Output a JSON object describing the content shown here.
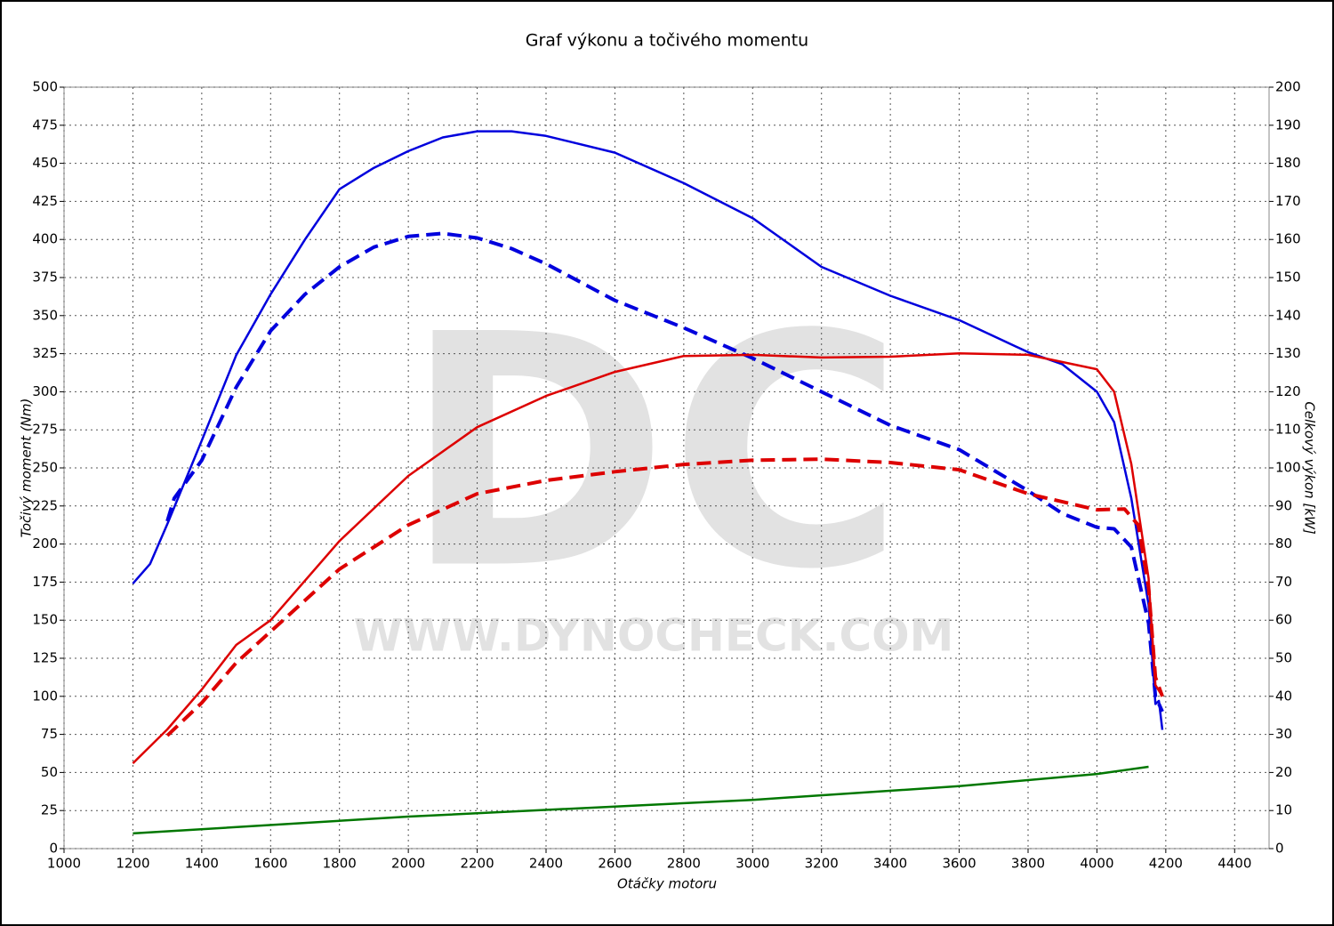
{
  "chart_data": {
    "type": "line",
    "title": "Graf výkonu a točivého momentu",
    "xlabel": "Otáčky motoru",
    "ylabel": "Točivý moment (Nm)",
    "y2label": "Celkový výkon [kW]",
    "watermark": "DC",
    "watermark_url": "WWW.DYNOCHECK.COM",
    "xlim": [
      1000,
      4500
    ],
    "xticks": [
      1000,
      1200,
      1400,
      1600,
      1800,
      2000,
      2200,
      2400,
      2600,
      2800,
      3000,
      3200,
      3400,
      3600,
      3800,
      4000,
      4200,
      4400
    ],
    "ylim": [
      0,
      500
    ],
    "yticks": [
      0,
      25,
      50,
      75,
      100,
      125,
      150,
      175,
      200,
      225,
      250,
      275,
      300,
      325,
      350,
      375,
      400,
      425,
      450,
      475,
      500
    ],
    "y2lim": [
      0,
      200
    ],
    "y2ticks": [
      0,
      10,
      20,
      30,
      40,
      50,
      60,
      70,
      80,
      90,
      100,
      110,
      120,
      130,
      140,
      150,
      160,
      170,
      180,
      190,
      200
    ],
    "grid": true,
    "series": [
      {
        "color": "#0000dd",
        "style": "solid",
        "x": [
          1200,
          1250,
          1300,
          1400,
          1500,
          1600,
          1700,
          1800,
          1900,
          2000,
          2100,
          2200,
          2300,
          2400,
          2600,
          2800,
          3000,
          3200,
          3400,
          3600,
          3800,
          3900,
          4000,
          4050,
          4100,
          4150,
          4170,
          4180,
          4190
        ],
        "values": [
          174,
          187,
          213,
          268,
          324,
          364,
          400,
          433,
          447,
          458,
          467,
          471,
          471,
          468,
          457,
          437,
          414,
          382,
          363,
          347,
          326,
          318,
          300,
          280,
          230,
          160,
          95,
          97,
          78
        ]
      },
      {
        "color": "#0000dd",
        "style": "dashed",
        "x": [
          1300,
          1320,
          1400,
          1500,
          1600,
          1700,
          1800,
          1900,
          2000,
          2100,
          2200,
          2300,
          2400,
          2600,
          2800,
          3000,
          3200,
          3400,
          3600,
          3800,
          3900,
          4000,
          4050,
          4100,
          4150,
          4170,
          4190
        ],
        "values": [
          215,
          230,
          255,
          303,
          340,
          364,
          382,
          395,
          402,
          404,
          401,
          394,
          384,
          360,
          342,
          322,
          300,
          278,
          262,
          235,
          220,
          211,
          210,
          198,
          148,
          100,
          90
        ]
      },
      {
        "color": "#dd0000",
        "style": "solid",
        "axis": "y2",
        "x": [
          1200,
          1300,
          1400,
          1500,
          1600,
          1800,
          2000,
          2200,
          2400,
          2600,
          2800,
          3000,
          3200,
          3400,
          3600,
          3800,
          4000,
          4050,
          4100,
          4150,
          4170,
          4190
        ],
        "values": [
          22.4,
          31.3,
          41.8,
          53.5,
          60,
          80.8,
          97.9,
          110.7,
          118.9,
          125.2,
          129.4,
          129.7,
          129,
          129.2,
          130.1,
          129.7,
          125.9,
          120,
          101,
          71,
          43,
          40
        ]
      },
      {
        "color": "#dd0000",
        "style": "dashed",
        "axis": "y2",
        "x": [
          1300,
          1400,
          1500,
          1600,
          1800,
          2000,
          2200,
          2400,
          2600,
          2800,
          3000,
          3200,
          3400,
          3600,
          3800,
          4000,
          4080,
          4120,
          4150,
          4170,
          4190
        ],
        "values": [
          29.7,
          38.3,
          48.8,
          57,
          73.4,
          85,
          93.2,
          96.7,
          99,
          100.9,
          102,
          102.3,
          101.4,
          99.5,
          93.2,
          89,
          89.2,
          85,
          68.7,
          45,
          40
        ]
      },
      {
        "color": "#007700",
        "style": "solid",
        "axis": "y2",
        "x": [
          1200,
          2000,
          3000,
          3600,
          4000,
          4150
        ],
        "values": [
          4,
          8.4,
          12.8,
          16.4,
          19.6,
          21.5
        ]
      }
    ]
  }
}
